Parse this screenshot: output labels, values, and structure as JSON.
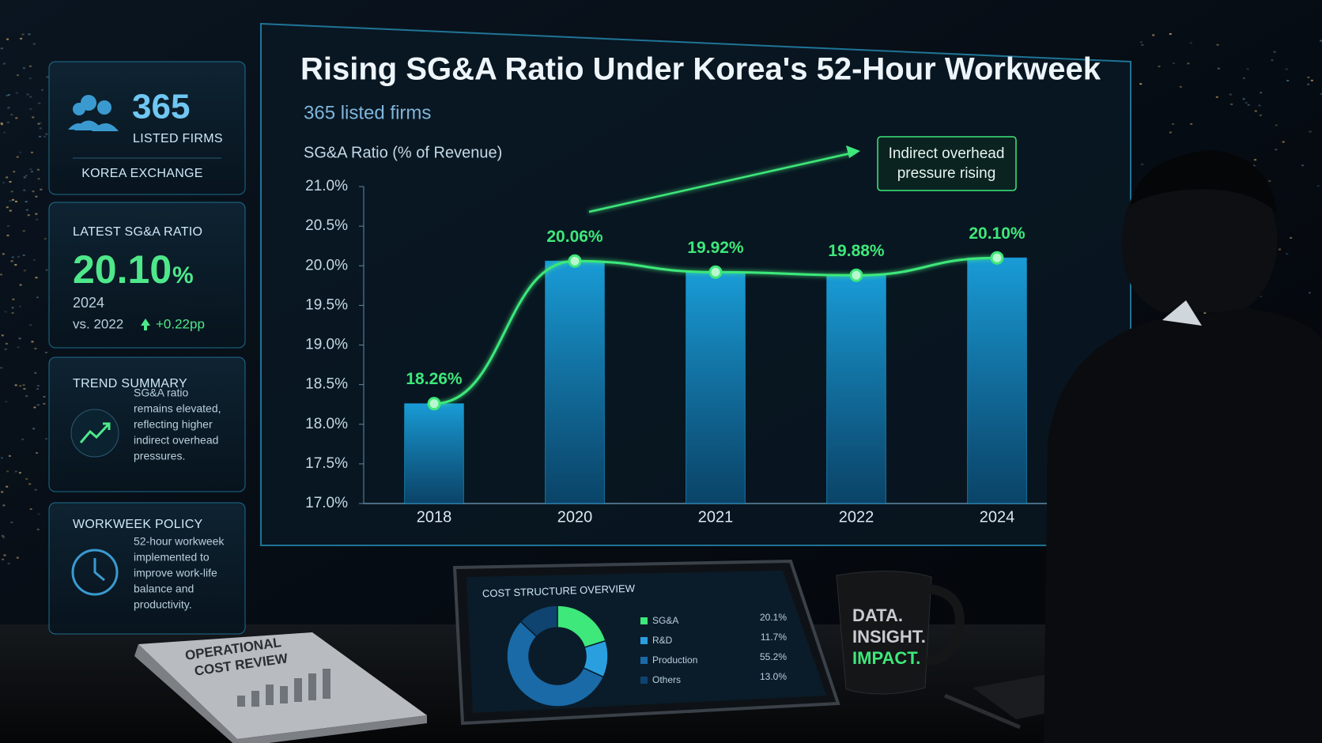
{
  "chart_data": [
    {
      "type": "combo",
      "title": "Rising SG&A Ratio Under Korea's 52-Hour Workweek",
      "subtitle": "365 listed firms",
      "y_label": "SG&A Ratio (% of Revenue)",
      "annotation": [
        "Indirect overhead",
        "pressure rising"
      ],
      "categories": [
        "2018",
        "2020",
        "2021",
        "2022",
        "2024"
      ],
      "values": [
        18.26,
        20.06,
        19.92,
        19.88,
        20.1
      ],
      "value_labels": [
        "18.26%",
        "20.06%",
        "19.92%",
        "19.88%",
        "20.10%"
      ],
      "bar_color": "#1aa3e0",
      "line_color": "#3ee87a",
      "ylim": [
        17,
        21
      ],
      "yticks": [
        {
          "value": 17,
          "label": "17.0%"
        },
        {
          "value": 17.5,
          "label": "17.5%"
        },
        {
          "value": 18,
          "label": "18.0%"
        },
        {
          "value": 18.5,
          "label": "18.5%"
        },
        {
          "value": 19,
          "label": "19.0%"
        },
        {
          "value": 19.5,
          "label": "19.5%"
        },
        {
          "value": 20,
          "label": "20.0%"
        },
        {
          "value": 20.5,
          "label": "20.5%"
        },
        {
          "value": 21,
          "label": "21.0%"
        }
      ],
      "grid": false
    },
    {
      "type": "pie",
      "title": "COST STRUCTURE OVERVIEW",
      "categories": [
        "SG&A",
        "R&D",
        "Production",
        "Others"
      ],
      "values": [
        20.1,
        11.7,
        55.2,
        13.0
      ],
      "value_labels": [
        "20.1%",
        "11.7%",
        "55.2%",
        "13.0%"
      ],
      "colors": [
        "#3ee87a",
        "#2a9fe0",
        "#1a6aa8",
        "#0f4470"
      ]
    }
  ],
  "panels": {
    "firms": {
      "number": "365",
      "label": "LISTED FIRMS",
      "source": "KOREA EXCHANGE"
    },
    "latest": {
      "title": "LATEST SG&A RATIO",
      "value": "20.10",
      "unit": "%",
      "year": "2024",
      "compare": "vs. 2022",
      "change": "+0.22pp"
    },
    "trend": {
      "title": "TREND SUMMARY",
      "lines": [
        "SG&A ratio",
        "remains elevated,",
        "reflecting higher",
        "indirect overhead",
        "pressures."
      ]
    },
    "policy": {
      "title": "WORKWEEK POLICY",
      "lines": [
        "52-hour workweek",
        "implemented to",
        "improve work-life",
        "balance and",
        "productivity."
      ]
    }
  },
  "report": {
    "title": [
      "OPERATIONAL",
      "COST REVIEW"
    ]
  },
  "mug": {
    "lines": [
      "DATA.",
      "INSIGHT.",
      "IMPACT."
    ]
  }
}
